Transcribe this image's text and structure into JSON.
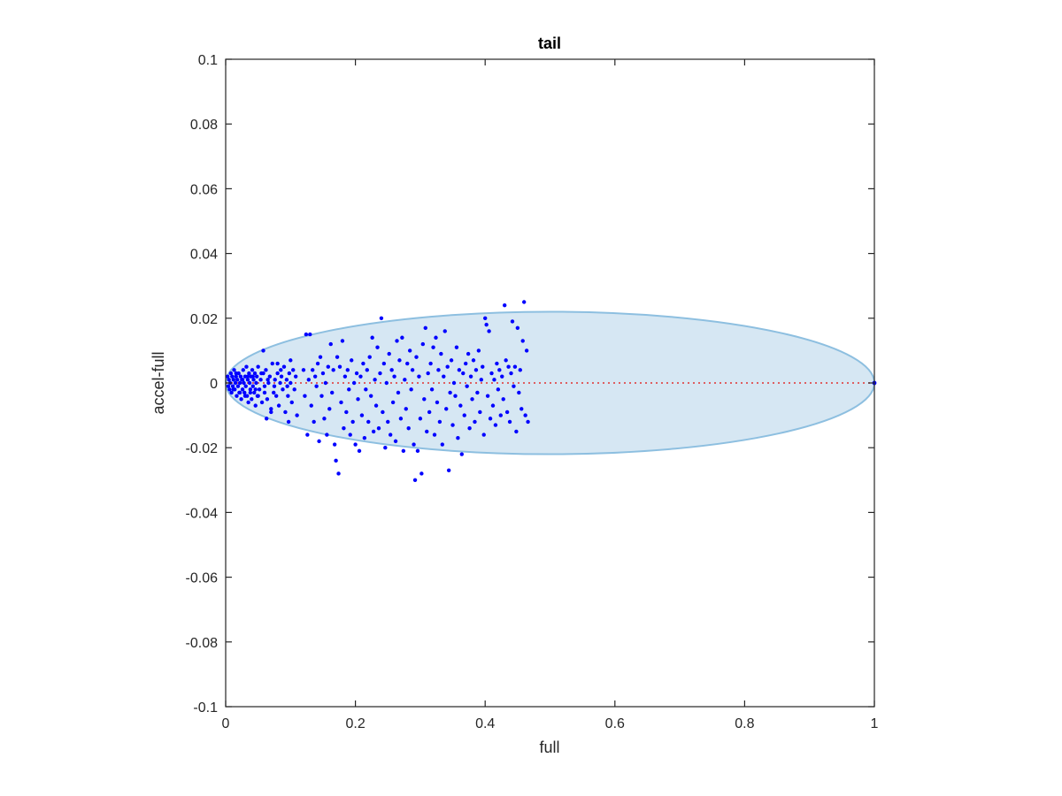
{
  "chart_data": {
    "type": "scatter",
    "title": "tail",
    "xlabel": "full",
    "ylabel": "accel-full",
    "xlim": [
      0,
      1
    ],
    "ylim": [
      -0.1,
      0.1
    ],
    "x_ticks": [
      0,
      0.2,
      0.4,
      0.6,
      0.8,
      1
    ],
    "x_tick_labels": [
      "0",
      "0.2",
      "0.4",
      "0.6",
      "0.8",
      "1"
    ],
    "y_ticks": [
      -0.1,
      -0.08,
      -0.06,
      -0.04,
      -0.02,
      0,
      0.02,
      0.04,
      0.06,
      0.08,
      0.1
    ],
    "y_tick_labels": [
      "-0.1",
      "-0.08",
      "-0.06",
      "-0.04",
      "-0.02",
      "0",
      "0.02",
      "0.04",
      "0.06",
      "0.08",
      "0.1"
    ],
    "grid": false,
    "ellipse": {
      "center": [
        0.5,
        0
      ],
      "radius_x": 0.5,
      "radius_y": 0.022,
      "fill": "#d6e7f3",
      "stroke": "#8dbfe0"
    },
    "reference_line": {
      "y": 0,
      "x_range": [
        0,
        1
      ],
      "color": "#e03030",
      "style": "dotted"
    },
    "series": [
      {
        "color": "#0000ff",
        "points": [
          [
            0.003,
            0.002
          ],
          [
            0.004,
            -0.001
          ],
          [
            0.005,
            0.001
          ],
          [
            0.006,
            -0.002
          ],
          [
            0.007,
            0.0
          ],
          [
            0.008,
            0.003
          ],
          [
            0.009,
            -0.003
          ],
          [
            0.01,
            0.002
          ],
          [
            0.011,
            -0.001
          ],
          [
            0.012,
            0.001
          ],
          [
            0.013,
            0.004
          ],
          [
            0.014,
            -0.002
          ],
          [
            0.015,
            0.0
          ],
          [
            0.016,
            0.002
          ],
          [
            0.017,
            -0.004
          ],
          [
            0.018,
            0.001
          ],
          [
            0.019,
            -0.001
          ],
          [
            0.02,
            0.003
          ],
          [
            0.021,
            -0.003
          ],
          [
            0.022,
            0.0
          ],
          [
            0.023,
            0.002
          ],
          [
            0.024,
            -0.005
          ],
          [
            0.025,
            0.001
          ],
          [
            0.026,
            -0.002
          ],
          [
            0.027,
            0.004
          ],
          [
            0.028,
            0.0
          ],
          [
            0.029,
            -0.003
          ],
          [
            0.03,
            0.002
          ],
          [
            0.031,
            -0.001
          ],
          [
            0.032,
            0.005
          ],
          [
            0.033,
            -0.004
          ],
          [
            0.034,
            0.001
          ],
          [
            0.035,
            -0.006
          ],
          [
            0.036,
            0.003
          ],
          [
            0.037,
            0.0
          ],
          [
            0.038,
            -0.002
          ],
          [
            0.039,
            0.002
          ],
          [
            0.04,
            -0.005
          ],
          [
            0.041,
            0.004
          ],
          [
            0.042,
            -0.001
          ],
          [
            0.043,
            0.001
          ],
          [
            0.044,
            -0.003
          ],
          [
            0.045,
            0.003
          ],
          [
            0.046,
            -0.007
          ],
          [
            0.047,
            0.0
          ],
          [
            0.048,
            0.002
          ],
          [
            0.049,
            -0.004
          ],
          [
            0.05,
            0.005
          ],
          [
            0.052,
            -0.002
          ],
          [
            0.054,
            0.001
          ],
          [
            0.056,
            -0.006
          ],
          [
            0.058,
            0.003
          ],
          [
            0.06,
            -0.001
          ],
          [
            0.062,
            0.004
          ],
          [
            0.064,
            -0.005
          ],
          [
            0.066,
            0.0
          ],
          [
            0.068,
            0.002
          ],
          [
            0.07,
            -0.008
          ],
          [
            0.072,
            0.006
          ],
          [
            0.074,
            -0.003
          ],
          [
            0.076,
            0.001
          ],
          [
            0.078,
            -0.004
          ],
          [
            0.08,
            0.003
          ],
          [
            0.082,
            -0.007
          ],
          [
            0.084,
            0.0
          ],
          [
            0.086,
            0.002
          ],
          [
            0.088,
            -0.002
          ],
          [
            0.09,
            0.005
          ],
          [
            0.092,
            -0.009
          ],
          [
            0.094,
            0.001
          ],
          [
            0.096,
            -0.004
          ],
          [
            0.098,
            0.003
          ],
          [
            0.1,
            0.0
          ],
          [
            0.102,
            -0.006
          ],
          [
            0.104,
            0.004
          ],
          [
            0.106,
            -0.002
          ],
          [
            0.108,
            0.002
          ],
          [
            0.11,
            -0.01
          ],
          [
            0.012,
            -0.002
          ],
          [
            0.016,
            0.003
          ],
          [
            0.022,
            -0.003
          ],
          [
            0.026,
            0.001
          ],
          [
            0.03,
            -0.004
          ],
          [
            0.034,
            0.002
          ],
          [
            0.038,
            -0.003
          ],
          [
            0.042,
            0.002
          ],
          [
            0.046,
            -0.002
          ],
          [
            0.05,
            -0.004
          ],
          [
            0.055,
            0.003
          ],
          [
            0.06,
            -0.003
          ],
          [
            0.065,
            0.001
          ],
          [
            0.075,
            -0.001
          ],
          [
            0.085,
            0.004
          ],
          [
            0.095,
            -0.001
          ],
          [
            0.058,
            0.01
          ],
          [
            0.063,
            -0.011
          ],
          [
            0.08,
            0.006
          ],
          [
            0.097,
            -0.012
          ],
          [
            0.1,
            0.007
          ],
          [
            0.07,
            -0.009
          ],
          [
            0.12,
            0.004
          ],
          [
            0.122,
            -0.004
          ],
          [
            0.124,
            0.015
          ],
          [
            0.126,
            -0.016
          ],
          [
            0.128,
            0.001
          ],
          [
            0.13,
            0.015
          ],
          [
            0.132,
            -0.007
          ],
          [
            0.134,
            0.004
          ],
          [
            0.136,
            -0.012
          ],
          [
            0.138,
            0.002
          ],
          [
            0.14,
            -0.001
          ],
          [
            0.142,
            0.006
          ],
          [
            0.144,
            -0.018
          ],
          [
            0.146,
            0.008
          ],
          [
            0.148,
            -0.004
          ],
          [
            0.15,
            0.003
          ],
          [
            0.152,
            -0.011
          ],
          [
            0.154,
            0.0
          ],
          [
            0.156,
            -0.016
          ],
          [
            0.158,
            0.005
          ],
          [
            0.16,
            -0.008
          ],
          [
            0.162,
            0.012
          ],
          [
            0.164,
            -0.003
          ],
          [
            0.166,
            0.004
          ],
          [
            0.168,
            -0.019
          ],
          [
            0.17,
            -0.024
          ],
          [
            0.172,
            0.008
          ],
          [
            0.174,
            -0.028
          ],
          [
            0.176,
            0.005
          ],
          [
            0.178,
            -0.006
          ],
          [
            0.18,
            0.013
          ],
          [
            0.182,
            -0.014
          ],
          [
            0.184,
            0.002
          ],
          [
            0.186,
            -0.009
          ],
          [
            0.188,
            0.004
          ],
          [
            0.19,
            -0.002
          ],
          [
            0.192,
            -0.016
          ],
          [
            0.194,
            0.007
          ],
          [
            0.196,
            -0.012
          ],
          [
            0.198,
            0.0
          ],
          [
            0.2,
            -0.019
          ],
          [
            0.202,
            0.003
          ],
          [
            0.204,
            -0.005
          ],
          [
            0.206,
            -0.021
          ],
          [
            0.208,
            0.002
          ],
          [
            0.21,
            -0.01
          ],
          [
            0.212,
            0.006
          ],
          [
            0.214,
            -0.017
          ],
          [
            0.216,
            -0.002
          ],
          [
            0.218,
            0.004
          ],
          [
            0.22,
            -0.012
          ],
          [
            0.222,
            0.008
          ],
          [
            0.224,
            -0.004
          ],
          [
            0.226,
            0.014
          ],
          [
            0.228,
            -0.015
          ],
          [
            0.23,
            0.001
          ],
          [
            0.232,
            -0.007
          ],
          [
            0.234,
            0.011
          ],
          [
            0.236,
            -0.014
          ],
          [
            0.238,
            0.003
          ],
          [
            0.24,
            0.02
          ],
          [
            0.242,
            -0.009
          ],
          [
            0.244,
            0.006
          ],
          [
            0.246,
            -0.02
          ],
          [
            0.248,
            0.0
          ],
          [
            0.25,
            -0.012
          ],
          [
            0.252,
            0.009
          ],
          [
            0.254,
            -0.016
          ],
          [
            0.256,
            0.004
          ],
          [
            0.258,
            -0.006
          ],
          [
            0.26,
            0.002
          ],
          [
            0.262,
            -0.018
          ],
          [
            0.264,
            0.013
          ],
          [
            0.266,
            -0.003
          ],
          [
            0.268,
            0.007
          ],
          [
            0.27,
            -0.011
          ],
          [
            0.272,
            0.014
          ],
          [
            0.274,
            -0.021
          ],
          [
            0.276,
            0.001
          ],
          [
            0.278,
            -0.008
          ],
          [
            0.28,
            0.006
          ],
          [
            0.282,
            -0.014
          ],
          [
            0.284,
            0.01
          ],
          [
            0.286,
            -0.002
          ],
          [
            0.288,
            0.004
          ],
          [
            0.29,
            -0.019
          ],
          [
            0.292,
            -0.03
          ],
          [
            0.294,
            0.008
          ],
          [
            0.296,
            -0.021
          ],
          [
            0.298,
            0.002
          ],
          [
            0.3,
            -0.011
          ],
          [
            0.302,
            -0.028
          ],
          [
            0.304,
            0.012
          ],
          [
            0.306,
            -0.005
          ],
          [
            0.308,
            0.017
          ],
          [
            0.31,
            -0.015
          ],
          [
            0.312,
            0.003
          ],
          [
            0.314,
            -0.009
          ],
          [
            0.316,
            0.006
          ],
          [
            0.318,
            -0.002
          ],
          [
            0.32,
            0.011
          ],
          [
            0.322,
            -0.016
          ],
          [
            0.324,
            0.014
          ],
          [
            0.326,
            -0.006
          ],
          [
            0.328,
            0.004
          ],
          [
            0.33,
            -0.012
          ],
          [
            0.332,
            0.009
          ],
          [
            0.334,
            -0.019
          ],
          [
            0.336,
            0.002
          ],
          [
            0.338,
            0.016
          ],
          [
            0.34,
            -0.008
          ],
          [
            0.342,
            0.005
          ],
          [
            0.344,
            -0.027
          ],
          [
            0.346,
            -0.003
          ],
          [
            0.348,
            0.007
          ],
          [
            0.35,
            -0.013
          ],
          [
            0.352,
            0.0
          ],
          [
            0.354,
            -0.004
          ],
          [
            0.356,
            0.011
          ],
          [
            0.358,
            -0.017
          ],
          [
            0.36,
            0.004
          ],
          [
            0.362,
            -0.007
          ],
          [
            0.364,
            -0.022
          ],
          [
            0.366,
            0.003
          ],
          [
            0.368,
            -0.01
          ],
          [
            0.37,
            0.006
          ],
          [
            0.372,
            -0.001
          ],
          [
            0.374,
            0.009
          ],
          [
            0.376,
            -0.014
          ],
          [
            0.378,
            0.002
          ],
          [
            0.38,
            -0.005
          ],
          [
            0.382,
            0.007
          ],
          [
            0.384,
            -0.012
          ],
          [
            0.386,
            0.004
          ],
          [
            0.388,
            -0.003
          ],
          [
            0.39,
            0.01
          ],
          [
            0.392,
            -0.009
          ],
          [
            0.394,
            0.001
          ],
          [
            0.396,
            0.005
          ],
          [
            0.398,
            -0.016
          ],
          [
            0.4,
            0.02
          ],
          [
            0.402,
            0.018
          ],
          [
            0.404,
            -0.004
          ],
          [
            0.406,
            0.016
          ],
          [
            0.408,
            -0.011
          ],
          [
            0.41,
            0.003
          ],
          [
            0.412,
            -0.007
          ],
          [
            0.414,
            0.001
          ],
          [
            0.416,
            -0.013
          ],
          [
            0.418,
            0.006
          ],
          [
            0.42,
            -0.002
          ],
          [
            0.422,
            0.004
          ],
          [
            0.424,
            -0.01
          ],
          [
            0.426,
            0.002
          ],
          [
            0.428,
            -0.005
          ],
          [
            0.43,
            0.024
          ],
          [
            0.432,
            0.007
          ],
          [
            0.434,
            -0.009
          ],
          [
            0.436,
            0.005
          ],
          [
            0.438,
            -0.012
          ],
          [
            0.44,
            0.003
          ],
          [
            0.442,
            0.019
          ],
          [
            0.444,
            -0.001
          ],
          [
            0.446,
            0.005
          ],
          [
            0.448,
            -0.015
          ],
          [
            0.45,
            0.017
          ],
          [
            0.452,
            -0.003
          ],
          [
            0.454,
            0.004
          ],
          [
            0.456,
            -0.008
          ],
          [
            0.458,
            0.013
          ],
          [
            0.46,
            0.025
          ],
          [
            0.462,
            -0.01
          ],
          [
            0.464,
            0.01
          ],
          [
            0.466,
            -0.012
          ]
        ]
      }
    ],
    "extra_points": [
      [
        1,
        0
      ]
    ]
  }
}
